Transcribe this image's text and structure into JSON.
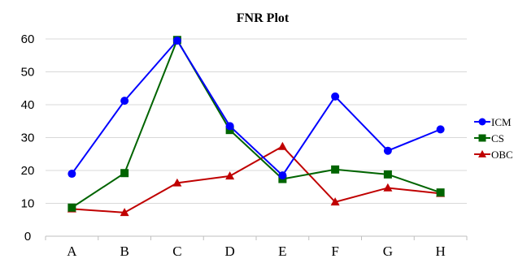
{
  "chart_data": {
    "type": "line",
    "title": "FNR Plot",
    "xlabel": "",
    "ylabel": "",
    "categories": [
      "A",
      "B",
      "C",
      "D",
      "E",
      "F",
      "G",
      "H"
    ],
    "ylim": [
      0,
      60
    ],
    "yticks": [
      0,
      10,
      20,
      30,
      40,
      50,
      60
    ],
    "grid": true,
    "legend_position": "right",
    "series": [
      {
        "name": "ICM",
        "color": "#0000ff",
        "marker": "circle",
        "values": [
          19,
          41.2,
          59.5,
          33.5,
          18.5,
          42.5,
          26,
          32.5
        ]
      },
      {
        "name": "CS",
        "color": "#006400",
        "marker": "square",
        "values": [
          8.7,
          19.2,
          59.7,
          32.3,
          17.4,
          20.3,
          18.8,
          13.3
        ]
      },
      {
        "name": "OBC",
        "color": "#c00000",
        "marker": "triangle",
        "values": [
          8.3,
          7.2,
          16.2,
          18.3,
          27.3,
          10.4,
          14.7,
          13
        ]
      }
    ]
  }
}
